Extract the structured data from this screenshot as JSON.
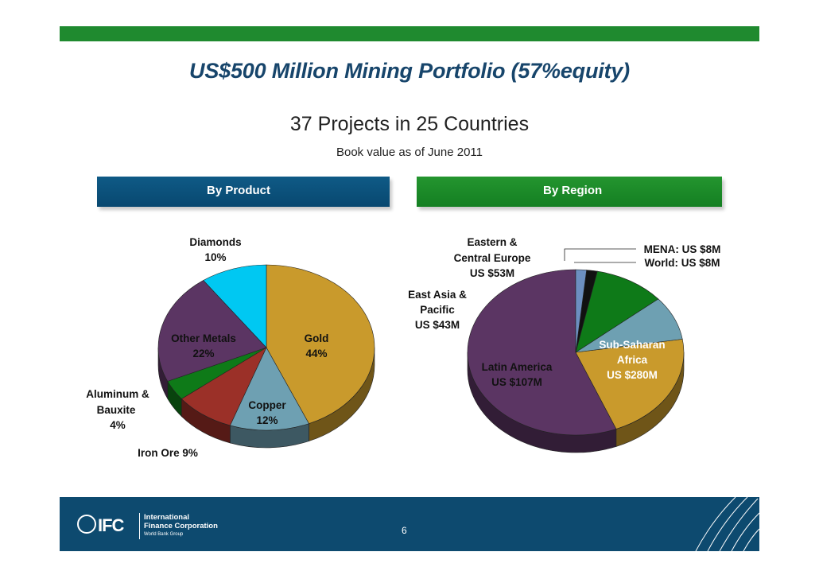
{
  "slide": {
    "title": "US$500 Million Mining Portfolio (57%equity)",
    "subtitle": "37 Projects in 25 Countries",
    "book_value": "Book value as of June 2011",
    "left_header": "By Product",
    "right_header": "By Region",
    "page_number": "6"
  },
  "footer": {
    "logo_mark": "IFC",
    "org_line1": "International",
    "org_line2": "Finance Corporation",
    "org_line3": "World Bank Group"
  },
  "colors": {
    "top_bar": "#1f8a2f",
    "title": "#17456b",
    "footer": "#0d4a6f"
  },
  "chart_data": [
    {
      "type": "pie",
      "title": "By Product",
      "slices": [
        {
          "name": "Gold",
          "value": 44,
          "color": "#c99a2c",
          "label_lines": [
            "Gold",
            "44%"
          ]
        },
        {
          "name": "Copper",
          "value": 12,
          "color": "#6ea0b2",
          "label_lines": [
            "Copper",
            "12%"
          ]
        },
        {
          "name": "Iron Ore",
          "value": 9,
          "color": "#9b3028",
          "label_lines": [
            "Iron Ore 9%"
          ]
        },
        {
          "name": "Aluminum & Bauxite",
          "value": 4,
          "color": "#0e7a18",
          "label_lines": [
            "Aluminum &",
            "Bauxite",
            "4%"
          ]
        },
        {
          "name": "Other Metals",
          "value": 22,
          "color": "#5b3563",
          "label_lines": [
            "Other Metals",
            "22%"
          ]
        },
        {
          "name": "Diamonds",
          "value": 10,
          "color": "#00c8f2",
          "label_lines": [
            "Diamonds",
            "10%"
          ]
        }
      ]
    },
    {
      "type": "pie",
      "title": "By Region",
      "slices": [
        {
          "name": "Sub-Saharan Africa",
          "value": 280,
          "color": "#5b3563",
          "label_lines": [
            "Sub-Saharan",
            "Africa",
            "US $280M"
          ]
        },
        {
          "name": "Latin America",
          "value": 107,
          "color": "#c99a2c",
          "label_lines": [
            "Latin America",
            "US $107M"
          ]
        },
        {
          "name": "East Asia & Pacific",
          "value": 43,
          "color": "#6ea0b2",
          "label_lines": [
            "East Asia &",
            "Pacific",
            "US $43M"
          ]
        },
        {
          "name": "Eastern & Central Europe",
          "value": 53,
          "color": "#0e7a18",
          "label_lines": [
            "Eastern &",
            "Central Europe",
            "US $53M"
          ]
        },
        {
          "name": "MENA",
          "value": 8,
          "color": "#111111",
          "label_lines": [
            "MENA: US $8M"
          ]
        },
        {
          "name": "World",
          "value": 8,
          "color": "#6c8fc0",
          "label_lines": [
            "World: US $8M"
          ]
        }
      ]
    }
  ]
}
